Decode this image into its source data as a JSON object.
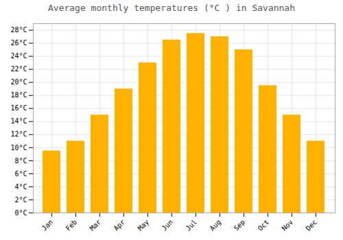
{
  "chart_data": {
    "type": "bar",
    "title": "Average monthly temperatures (°C ) in Savannah",
    "categories": [
      "Jan",
      "Feb",
      "Mar",
      "Apr",
      "May",
      "Jun",
      "Jul",
      "Aug",
      "Sep",
      "Oct",
      "Nov",
      "Dec"
    ],
    "values": [
      9.5,
      11.0,
      15.0,
      19.0,
      23.0,
      26.5,
      27.5,
      27.0,
      25.0,
      19.5,
      15.0,
      11.0
    ],
    "color": "#FFB300",
    "ylim": [
      0,
      29
    ],
    "yticks": [
      {
        "value": 0,
        "label": "0°C"
      },
      {
        "value": 2,
        "label": "2°C"
      },
      {
        "value": 4,
        "label": "4°C"
      },
      {
        "value": 6,
        "label": "6°C"
      },
      {
        "value": 8,
        "label": "8°C"
      },
      {
        "value": 10,
        "label": "10°C"
      },
      {
        "value": 12,
        "label": "12°C"
      },
      {
        "value": 14,
        "label": "14°C"
      },
      {
        "value": 16,
        "label": "16°C"
      },
      {
        "value": 18,
        "label": "18°C"
      },
      {
        "value": 20,
        "label": "20°C"
      },
      {
        "value": 22,
        "label": "22°C"
      },
      {
        "value": 24,
        "label": "24°C"
      },
      {
        "value": 26,
        "label": "26°C"
      },
      {
        "value": 28,
        "label": "28°C"
      }
    ],
    "grid": true
  }
}
